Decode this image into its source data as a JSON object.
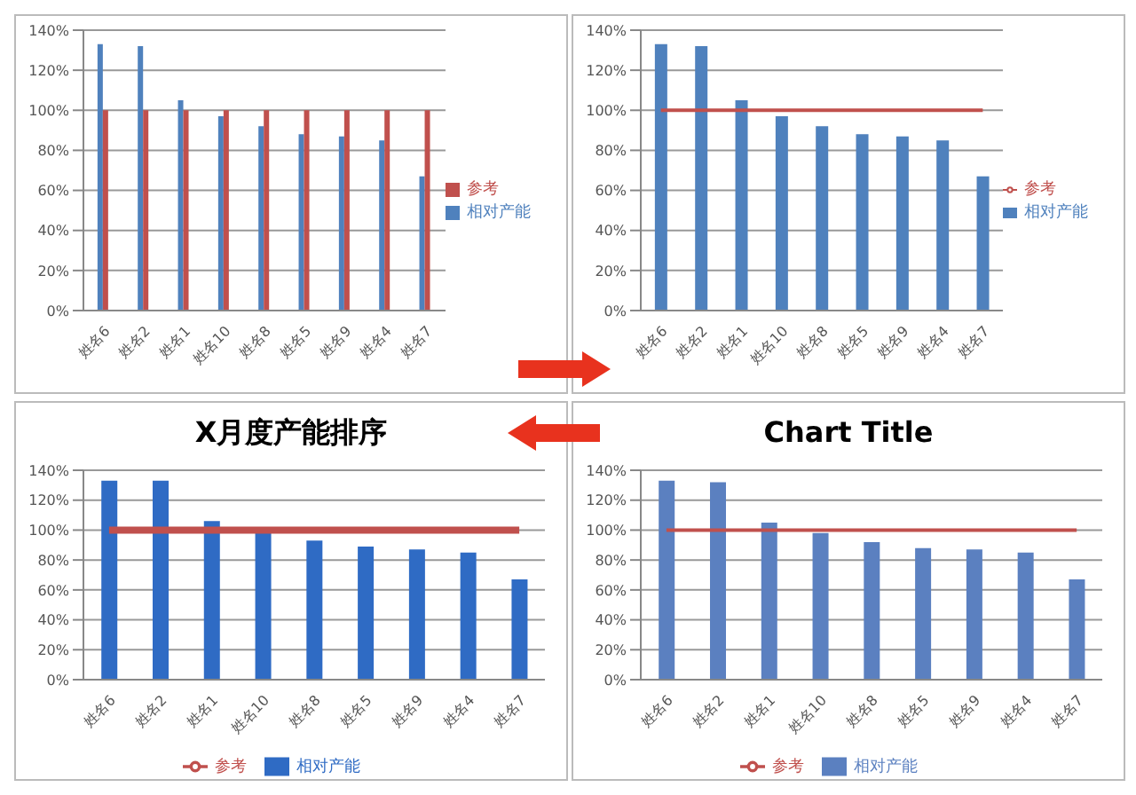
{
  "chart_data": [
    {
      "type": "bar",
      "categories": [
        "姓名6",
        "姓名2",
        "姓名1",
        "姓名10",
        "姓名8",
        "姓名5",
        "姓名9",
        "姓名4",
        "姓名7"
      ],
      "series": [
        {
          "name": "相对产能",
          "color": "#4f81bd",
          "values": [
            133,
            132,
            105,
            97,
            92,
            88,
            87,
            85,
            67
          ]
        },
        {
          "name": "参考",
          "color": "#c0504d",
          "values": [
            100,
            100,
            100,
            100,
            100,
            100,
            100,
            100,
            100
          ]
        }
      ],
      "ylim": [
        0,
        140
      ],
      "yticks": [
        {
          "value": 0,
          "label": "0%"
        },
        {
          "value": 20,
          "label": "20%"
        },
        {
          "value": 40,
          "label": "40%"
        },
        {
          "value": 60,
          "label": "60%"
        },
        {
          "value": 80,
          "label": "80%"
        },
        {
          "value": 100,
          "label": "100%"
        },
        {
          "value": 120,
          "label": "120%"
        },
        {
          "value": 140,
          "label": "140%"
        }
      ],
      "grid": "y",
      "legend": "right"
    },
    {
      "type": "bar",
      "categories": [
        "姓名6",
        "姓名2",
        "姓名1",
        "姓名10",
        "姓名8",
        "姓名5",
        "姓名9",
        "姓名4",
        "姓名7"
      ],
      "series": [
        {
          "name": "相对产能",
          "color": "#4f81bd",
          "values": [
            133,
            132,
            105,
            97,
            92,
            88,
            87,
            85,
            67
          ]
        },
        {
          "name": "参考",
          "type": "line",
          "color": "#c0504d",
          "values": [
            100,
            100,
            100,
            100,
            100,
            100,
            100,
            100,
            100
          ]
        }
      ],
      "ylim": [
        0,
        140
      ],
      "yticks": [
        {
          "value": 0,
          "label": "0%"
        },
        {
          "value": 20,
          "label": "20%"
        },
        {
          "value": 40,
          "label": "40%"
        },
        {
          "value": 60,
          "label": "60%"
        },
        {
          "value": 80,
          "label": "80%"
        },
        {
          "value": 100,
          "label": "100%"
        },
        {
          "value": 120,
          "label": "120%"
        },
        {
          "value": 140,
          "label": "140%"
        }
      ],
      "grid": "y",
      "legend": "right"
    },
    {
      "type": "bar",
      "title": "X月度产能排序",
      "categories": [
        "姓名6",
        "姓名2",
        "姓名1",
        "姓名10",
        "姓名8",
        "姓名5",
        "姓名9",
        "姓名4",
        "姓名7"
      ],
      "series": [
        {
          "name": "相对产能",
          "color": "#2f6bc4",
          "values": [
            133,
            133,
            106,
            98,
            93,
            89,
            87,
            85,
            67
          ]
        },
        {
          "name": "参考",
          "type": "line",
          "color": "#c0504d",
          "values": [
            100,
            100,
            100,
            100,
            100,
            100,
            100,
            100,
            100
          ]
        }
      ],
      "ylim": [
        0,
        140
      ],
      "yticks": [
        {
          "value": 0,
          "label": "0%"
        },
        {
          "value": 20,
          "label": "20%"
        },
        {
          "value": 40,
          "label": "40%"
        },
        {
          "value": 60,
          "label": "60%"
        },
        {
          "value": 80,
          "label": "80%"
        },
        {
          "value": 100,
          "label": "100%"
        },
        {
          "value": 120,
          "label": "120%"
        },
        {
          "value": 140,
          "label": "140%"
        }
      ],
      "grid": "y",
      "legend": "bottom"
    },
    {
      "type": "bar",
      "title": "Chart Title",
      "categories": [
        "姓名6",
        "姓名2",
        "姓名1",
        "姓名10",
        "姓名8",
        "姓名5",
        "姓名9",
        "姓名4",
        "姓名7"
      ],
      "series": [
        {
          "name": "相对产能",
          "color": "#5b80c0",
          "values": [
            133,
            132,
            105,
            98,
            92,
            88,
            87,
            85,
            67
          ]
        },
        {
          "name": "参考",
          "type": "line",
          "color": "#c0504d",
          "values": [
            100,
            100,
            100,
            100,
            100,
            100,
            100,
            100,
            100
          ]
        }
      ],
      "ylim": [
        0,
        140
      ],
      "yticks": [
        {
          "value": 0,
          "label": "0%"
        },
        {
          "value": 20,
          "label": "20%"
        },
        {
          "value": 40,
          "label": "40%"
        },
        {
          "value": 60,
          "label": "60%"
        },
        {
          "value": 80,
          "label": "80%"
        },
        {
          "value": 100,
          "label": "100%"
        },
        {
          "value": 120,
          "label": "120%"
        },
        {
          "value": 140,
          "label": "140%"
        }
      ],
      "grid": "y",
      "legend": "bottom"
    }
  ]
}
